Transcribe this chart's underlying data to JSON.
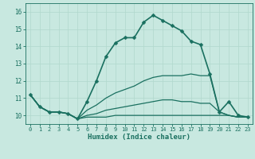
{
  "bg_color": "#c8e8e0",
  "grid_color": "#b0d8cc",
  "line_color": "#1a7060",
  "xlabel": "Humidex (Indice chaleur)",
  "xlim": [
    -0.5,
    23.5
  ],
  "ylim": [
    9.5,
    16.5
  ],
  "xticks": [
    0,
    1,
    2,
    3,
    4,
    5,
    6,
    7,
    8,
    9,
    10,
    11,
    12,
    13,
    14,
    15,
    16,
    17,
    18,
    19,
    20,
    21,
    22,
    23
  ],
  "yticks": [
    10,
    11,
    12,
    13,
    14,
    15,
    16
  ],
  "lines": [
    {
      "x": [
        0,
        1,
        2,
        3,
        4,
        5,
        6,
        7,
        8,
        9,
        10,
        11,
        12,
        13,
        14,
        15,
        16,
        17,
        18,
        19,
        20,
        21,
        22,
        23
      ],
      "y": [
        11.2,
        10.5,
        10.2,
        10.2,
        10.1,
        9.8,
        10.8,
        12.0,
        13.4,
        14.2,
        14.5,
        14.5,
        15.4,
        15.8,
        15.5,
        15.2,
        14.9,
        14.3,
        14.1,
        12.4,
        10.2,
        10.8,
        10.0,
        9.9
      ],
      "marker": "D",
      "markersize": 2.5,
      "linewidth": 1.2
    },
    {
      "x": [
        0,
        1,
        2,
        3,
        4,
        5,
        6,
        7,
        8,
        9,
        10,
        11,
        12,
        13,
        14,
        15,
        16,
        17,
        18,
        19,
        20,
        21,
        22,
        23
      ],
      "y": [
        11.2,
        10.5,
        10.2,
        10.2,
        10.1,
        9.8,
        10.3,
        10.6,
        11.0,
        11.3,
        11.5,
        11.7,
        12.0,
        12.2,
        12.3,
        12.3,
        12.3,
        12.4,
        12.3,
        12.3,
        10.2,
        10.0,
        9.9,
        9.9
      ],
      "marker": null,
      "markersize": 0,
      "linewidth": 0.9
    },
    {
      "x": [
        0,
        1,
        2,
        3,
        4,
        5,
        6,
        7,
        8,
        9,
        10,
        11,
        12,
        13,
        14,
        15,
        16,
        17,
        18,
        19,
        20,
        21,
        22,
        23
      ],
      "y": [
        11.2,
        10.5,
        10.2,
        10.2,
        10.1,
        9.8,
        10.0,
        10.1,
        10.3,
        10.4,
        10.5,
        10.6,
        10.7,
        10.8,
        10.9,
        10.9,
        10.8,
        10.8,
        10.7,
        10.7,
        10.2,
        10.0,
        9.9,
        9.9
      ],
      "marker": null,
      "markersize": 0,
      "linewidth": 0.9
    },
    {
      "x": [
        0,
        1,
        2,
        3,
        4,
        5,
        6,
        7,
        8,
        9,
        10,
        11,
        12,
        13,
        14,
        15,
        16,
        17,
        18,
        19,
        20,
        21,
        22,
        23
      ],
      "y": [
        11.2,
        10.5,
        10.2,
        10.2,
        10.1,
        9.8,
        9.9,
        9.9,
        9.9,
        10.0,
        10.0,
        10.0,
        10.0,
        10.0,
        10.0,
        10.0,
        10.0,
        10.0,
        10.0,
        10.0,
        10.0,
        10.0,
        9.9,
        9.9
      ],
      "marker": null,
      "markersize": 0,
      "linewidth": 0.9
    }
  ]
}
